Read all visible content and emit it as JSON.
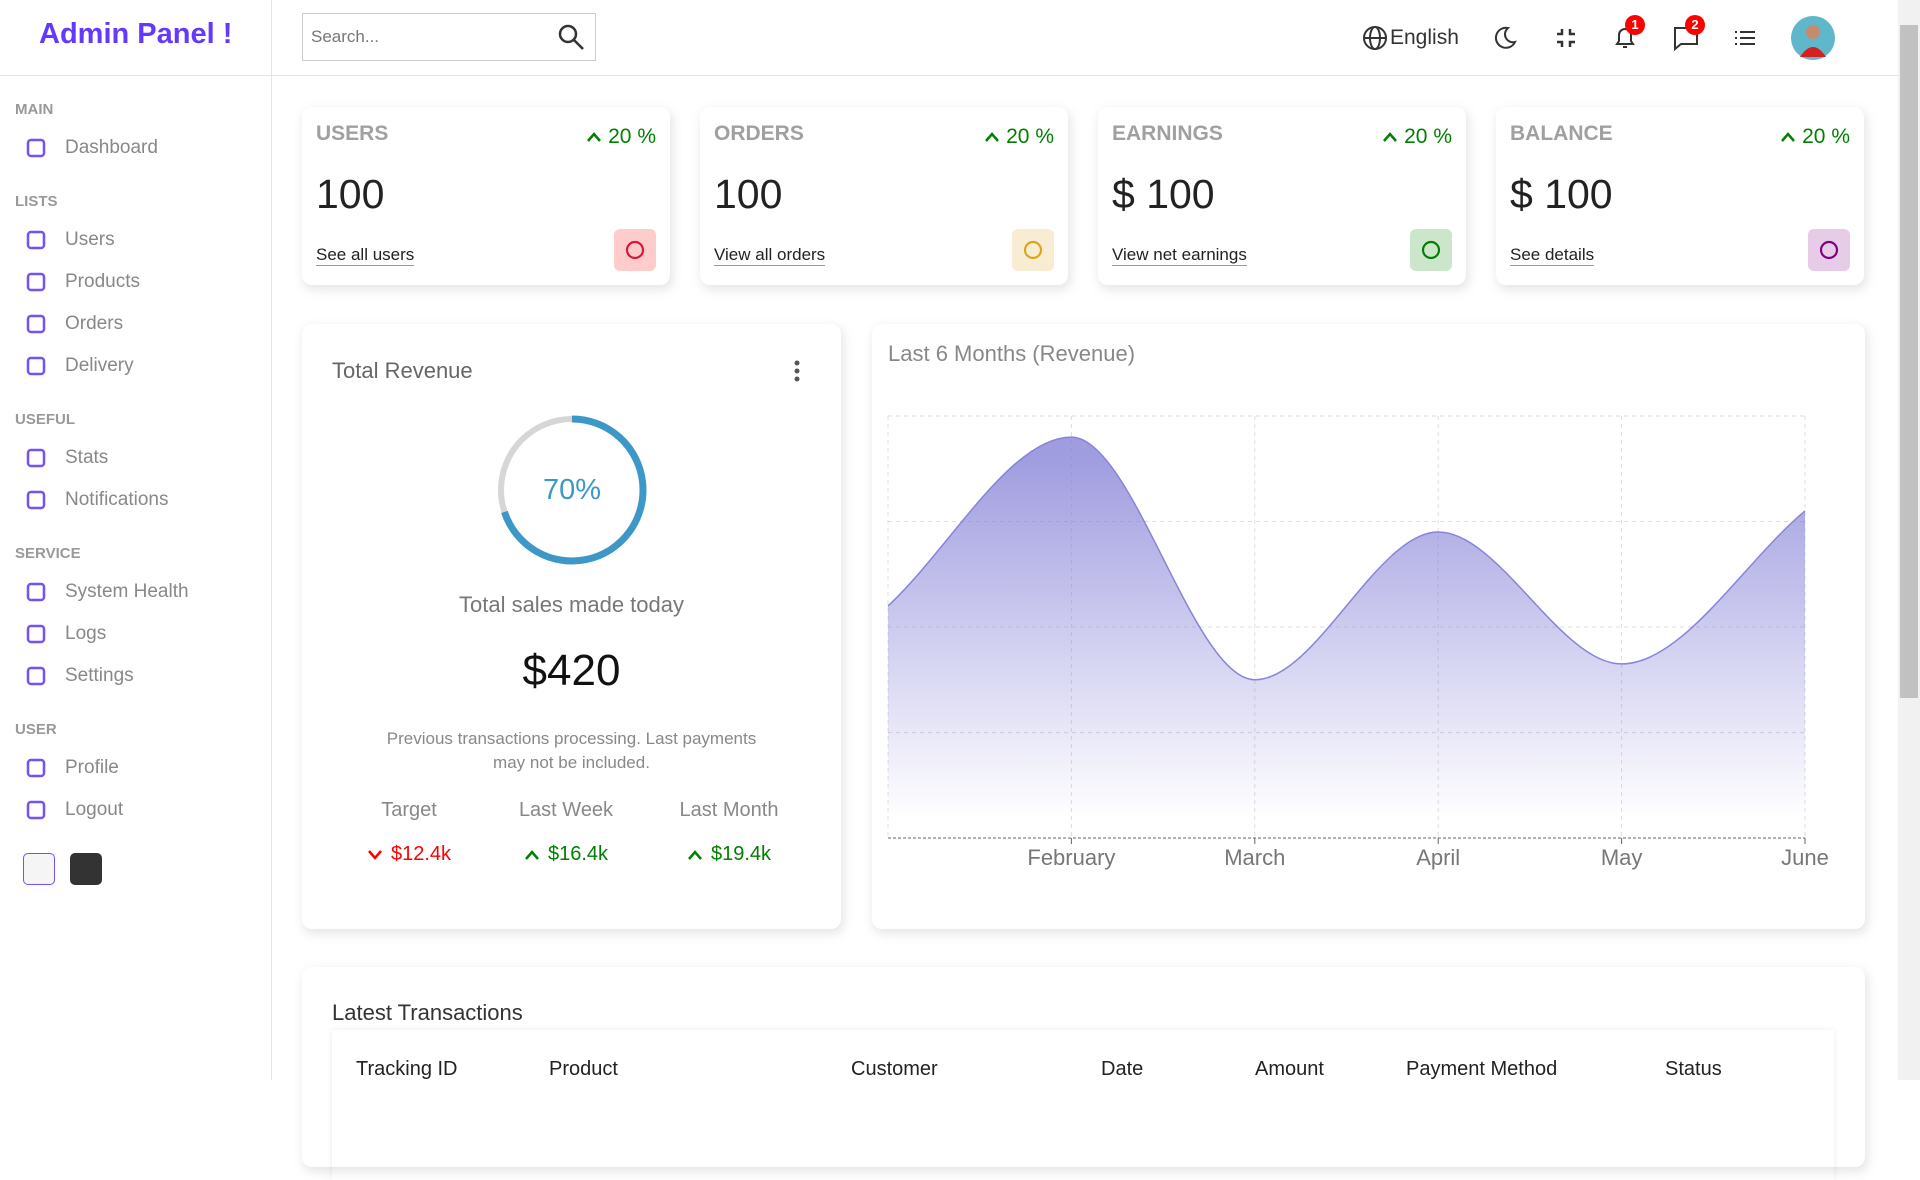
{
  "sidebar": {
    "logo": "Admin Panel !",
    "sections": [
      {
        "title": "MAIN",
        "items": [
          "Dashboard"
        ]
      },
      {
        "title": "LISTS",
        "items": [
          "Users",
          "Products",
          "Orders",
          "Delivery"
        ]
      },
      {
        "title": "USEFUL",
        "items": [
          "Stats",
          "Notifications"
        ]
      },
      {
        "title": "SERVICE",
        "items": [
          "System Health",
          "Logs",
          "Settings"
        ]
      },
      {
        "title": "USER",
        "items": [
          "Profile",
          "Logout"
        ]
      }
    ]
  },
  "header": {
    "search_placeholder": "Search...",
    "language": "English",
    "notifications": 1,
    "messages": 2
  },
  "widgets": [
    {
      "title": "USERS",
      "percentage": "20 %",
      "amount": "100",
      "link": "See all users"
    },
    {
      "title": "ORDERS",
      "percentage": "20 %",
      "amount": "100",
      "link": "View all orders"
    },
    {
      "title": "EARNINGS",
      "percentage": "20 %",
      "amount": "$ 100",
      "link": "View net earnings"
    },
    {
      "title": "BALANCE",
      "percentage": "20 %",
      "amount": "$ 100",
      "link": "See details"
    }
  ],
  "featured": {
    "title": "Total Revenue",
    "progress": {
      "value": 70,
      "label": "70%"
    },
    "subtitle": "Total sales made today",
    "amount": "$420",
    "description": "Previous transactions processing. Last payments may not be included.",
    "summary": [
      {
        "label": "Target",
        "value": "$12.4k",
        "trend": "down"
      },
      {
        "label": "Last Week",
        "value": "$16.4k",
        "trend": "up"
      },
      {
        "label": "Last Month",
        "value": "$19.4k",
        "trend": "up"
      }
    ]
  },
  "chart_data": {
    "type": "area",
    "title": "Last 6 Months (Revenue)",
    "categories": [
      null,
      "February",
      "March",
      "April",
      "May",
      "June"
    ],
    "values": [
      2200,
      3800,
      1500,
      2900,
      1650,
      3100
    ],
    "ylim": [
      0,
      4000
    ],
    "color": "#8884d8",
    "grid": true
  },
  "table": {
    "title": "Latest Transactions",
    "headers": [
      "Tracking ID",
      "Product",
      "Customer",
      "Date",
      "Amount",
      "Payment Method",
      "Status"
    ]
  }
}
